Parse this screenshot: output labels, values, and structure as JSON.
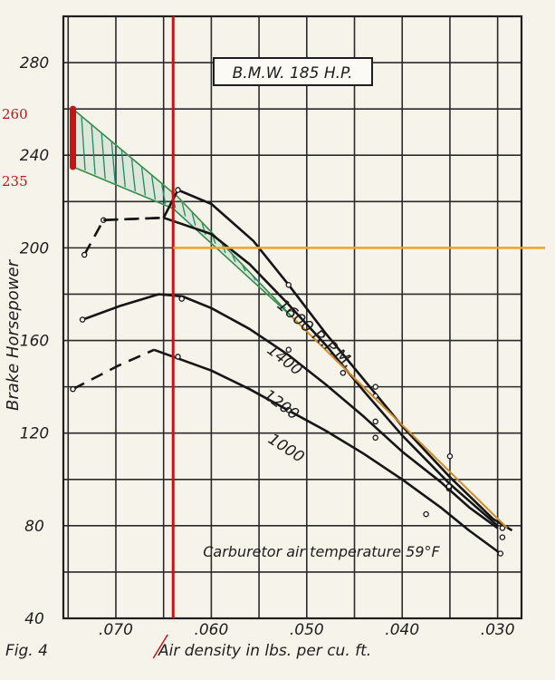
{
  "chart_data": {
    "type": "line",
    "title": "B.M.W. 185 H.P.",
    "figure_label": "Fig. 4",
    "xlabel": "Air density in lbs. per cu. ft.",
    "ylabel": "Brake Horsepower",
    "note": "Carburetor air temperature 59°F",
    "xlim": [
      0.0755,
      0.0275
    ],
    "ylim": [
      40,
      300
    ],
    "x_ticks": [
      {
        "value": 0.07,
        "label": ".070"
      },
      {
        "value": 0.06,
        "label": ".060"
      },
      {
        "value": 0.05,
        "label": ".050"
      },
      {
        "value": 0.04,
        "label": ".040"
      },
      {
        "value": 0.03,
        "label": ".030"
      }
    ],
    "y_ticks": [
      {
        "value": 40,
        "label": "40"
      },
      {
        "value": 80,
        "label": "80"
      },
      {
        "value": 120,
        "label": "120"
      },
      {
        "value": 160,
        "label": "160"
      },
      {
        "value": 200,
        "label": "200"
      },
      {
        "value": 240,
        "label": "240"
      },
      {
        "value": 280,
        "label": "280"
      }
    ],
    "grid": true,
    "series": [
      {
        "name": "1600 R.P.M.",
        "dashed": [
          [
            0.0733,
            197
          ],
          [
            0.0713,
            212
          ],
          [
            0.065,
            213
          ]
        ],
        "solid": [
          [
            0.065,
            213
          ],
          [
            0.0635,
            225
          ],
          [
            0.06,
            219
          ],
          [
            0.0556,
            203
          ],
          [
            0.0519,
            184
          ],
          [
            0.048,
            163
          ],
          [
            0.044,
            143
          ],
          [
            0.04,
            123
          ],
          [
            0.035,
            101
          ],
          [
            0.0305,
            83
          ],
          [
            0.0285,
            78
          ]
        ],
        "points": [
          [
            0.0733,
            197
          ],
          [
            0.0713,
            212
          ],
          [
            0.0635,
            225
          ],
          [
            0.0519,
            184
          ],
          [
            0.0428,
            140
          ],
          [
            0.035,
            110
          ],
          [
            0.0295,
            75
          ]
        ]
      },
      {
        "name": "1400",
        "dashed": [
          [
            0.0713,
            212
          ],
          [
            0.065,
            213
          ]
        ],
        "solid": [
          [
            0.065,
            213
          ],
          [
            0.06,
            206
          ],
          [
            0.056,
            193
          ],
          [
            0.052,
            176
          ],
          [
            0.048,
            158
          ],
          [
            0.044,
            138
          ],
          [
            0.04,
            119
          ],
          [
            0.035,
            98
          ],
          [
            0.03,
            80
          ]
        ],
        "points": [
          [
            0.0428,
            136
          ],
          [
            0.0462,
            146
          ],
          [
            0.0351,
            96
          ]
        ]
      },
      {
        "name": "1200",
        "dashed": [],
        "solid": [
          [
            0.0735,
            169
          ],
          [
            0.0695,
            175
          ],
          [
            0.0655,
            180
          ],
          [
            0.063,
            179
          ],
          [
            0.06,
            174
          ],
          [
            0.056,
            165
          ],
          [
            0.052,
            154
          ],
          [
            0.048,
            141
          ],
          [
            0.044,
            127
          ],
          [
            0.04,
            112
          ],
          [
            0.036,
            99
          ],
          [
            0.033,
            88
          ],
          [
            0.03,
            79
          ]
        ],
        "points": [
          [
            0.0735,
            169
          ],
          [
            0.0631,
            178
          ],
          [
            0.0519,
            156
          ],
          [
            0.0428,
            125
          ],
          [
            0.0351,
            97
          ],
          [
            0.0295,
            79
          ]
        ]
      },
      {
        "name": "1000",
        "dashed": [
          [
            0.0745,
            139
          ],
          [
            0.0698,
            149
          ],
          [
            0.066,
            156
          ]
        ],
        "solid": [
          [
            0.066,
            156
          ],
          [
            0.06,
            147
          ],
          [
            0.056,
            139
          ],
          [
            0.052,
            130
          ],
          [
            0.048,
            121
          ],
          [
            0.044,
            111
          ],
          [
            0.04,
            100
          ],
          [
            0.036,
            88
          ],
          [
            0.033,
            78
          ],
          [
            0.0297,
            68
          ]
        ],
        "points": [
          [
            0.0745,
            139
          ],
          [
            0.0635,
            153
          ],
          [
            0.0519,
            130
          ],
          [
            0.0428,
            118
          ],
          [
            0.0375,
            85
          ],
          [
            0.0297,
            68
          ]
        ]
      }
    ],
    "annotations": {
      "markers": [
        "260",
        "235"
      ],
      "marker_color": "#c41414",
      "vertical_line_x": 0.064,
      "vertical_line_color": "#c41414",
      "horizontal_line_y": 200,
      "horizontal_line_color": "#f0a323",
      "band_color": "#1e8a66",
      "band_edge_color": "#e2c23a",
      "band_top": [
        [
          0.0745,
          260
        ],
        [
          0.0635,
          222
        ],
        [
          0.0515,
          170
        ]
      ],
      "band_bottom": [
        [
          0.0745,
          235
        ],
        [
          0.064,
          217
        ],
        [
          0.0515,
          170
        ]
      ],
      "extrapolation_color": "#d08a2a",
      "extrapolation": [
        [
          0.0515,
          170
        ],
        [
          0.029,
          79
        ]
      ]
    }
  }
}
